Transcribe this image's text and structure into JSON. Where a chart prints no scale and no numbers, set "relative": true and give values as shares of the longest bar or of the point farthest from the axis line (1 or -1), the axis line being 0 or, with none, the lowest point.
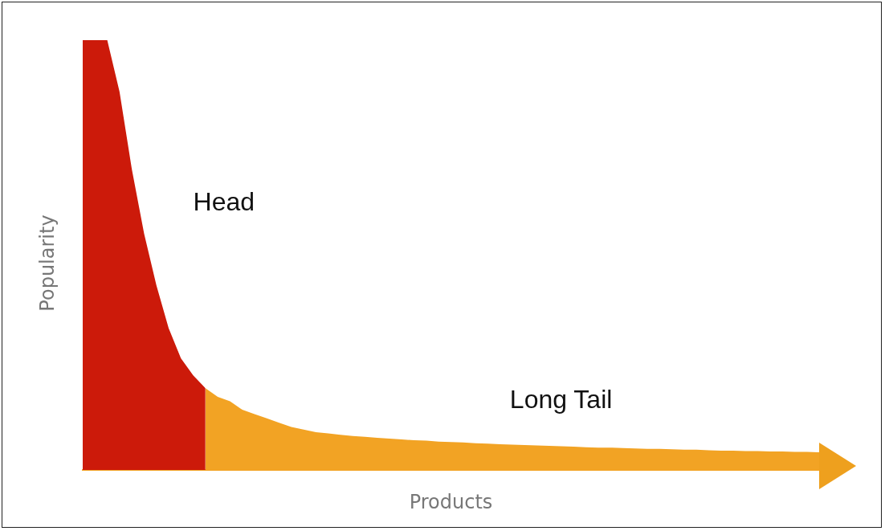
{
  "chart_data": {
    "type": "area",
    "relative": true,
    "xlabel": "Products",
    "ylabel": "Popularity",
    "legend": false,
    "annotations": [
      "Head",
      "Long Tail"
    ],
    "categories": [
      null,
      null,
      null,
      null,
      null,
      null,
      null,
      null,
      null,
      null,
      null,
      null,
      null,
      null,
      null,
      null,
      null,
      null,
      null,
      null,
      null,
      null,
      null,
      null,
      null,
      null,
      null,
      null,
      null,
      null,
      null,
      null,
      null,
      null,
      null,
      null,
      null,
      null,
      null,
      null,
      null,
      null,
      null,
      null,
      null,
      null,
      null,
      null,
      null,
      null,
      null,
      null,
      null,
      null,
      null,
      null,
      null,
      null,
      null,
      null,
      null
    ],
    "series": [
      {
        "type": "area",
        "color": "#cc1a0a",
        "values": [
          1.0,
          1.0,
          1.0,
          0.88,
          0.7,
          0.55,
          0.43,
          0.33,
          0.26,
          0.22,
          0.19,
          null,
          null,
          null,
          null,
          null,
          null,
          null,
          null,
          null,
          null,
          null,
          null,
          null,
          null,
          null,
          null,
          null,
          null,
          null,
          null,
          null,
          null,
          null,
          null,
          null,
          null,
          null,
          null,
          null,
          null,
          null,
          null,
          null,
          null,
          null,
          null,
          null,
          null,
          null,
          null,
          null,
          null,
          null,
          null,
          null,
          null,
          null,
          null,
          null,
          null
        ]
      },
      {
        "type": "area",
        "color": "#f2a324",
        "values": [
          null,
          null,
          null,
          null,
          null,
          null,
          null,
          null,
          null,
          null,
          0.19,
          0.17,
          0.16,
          0.14,
          0.13,
          0.12,
          0.11,
          0.1,
          0.094,
          0.088,
          0.085,
          0.082,
          0.079,
          0.077,
          0.075,
          0.073,
          0.071,
          0.069,
          0.068,
          0.066,
          0.065,
          0.064,
          0.062,
          0.061,
          0.06,
          0.059,
          0.058,
          0.057,
          0.056,
          0.055,
          0.054,
          0.053,
          0.052,
          0.052,
          0.051,
          0.05,
          0.049,
          0.049,
          0.048,
          0.047,
          0.047,
          0.046,
          0.045,
          0.045,
          0.044,
          0.044,
          0.043,
          0.043,
          0.042,
          0.042,
          0.041
        ]
      }
    ]
  }
}
